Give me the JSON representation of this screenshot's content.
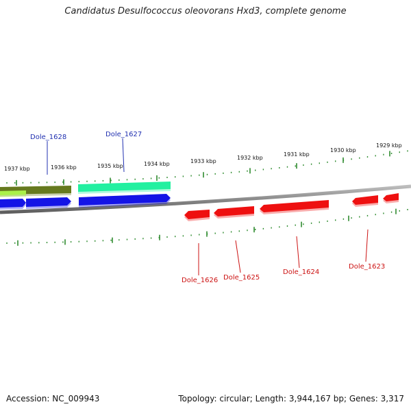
{
  "title": "Candidatus Desulfococcus oleovorans Hxd3, complete genome",
  "footer": {
    "accession": "Accession: NC_009943",
    "summary": "Topology: circular; Length: 3,944,167 bp; Genes: 3,317"
  },
  "colors": {
    "backbone": "#8a8a8a",
    "tick": "#2e8b2e",
    "forward_label": "#1f2fb0",
    "reverse_label": "#cc1111",
    "gene_blue": "#1414e6",
    "gene_red": "#ee1010",
    "gene_olive": "#667a1e",
    "gene_lime": "#aaf04a",
    "gene_teal": "#22f0a0"
  },
  "scale_labels": [
    {
      "kbp": 1937,
      "text": "1937 kbp"
    },
    {
      "kbp": 1936,
      "text": "1936 kbp"
    },
    {
      "kbp": 1935,
      "text": "1935 kbp"
    },
    {
      "kbp": 1934,
      "text": "1934 kbp"
    },
    {
      "kbp": 1933,
      "text": "1933 kbp"
    },
    {
      "kbp": 1932,
      "text": "1932 kbp"
    },
    {
      "kbp": 1931,
      "text": "1931 kbp"
    },
    {
      "kbp": 1930,
      "text": "1930 kbp"
    },
    {
      "kbp": 1929,
      "text": "1929 kbp"
    }
  ],
  "gene_labels": [
    {
      "id": "Dole_1628",
      "strand": "forward"
    },
    {
      "id": "Dole_1627",
      "strand": "forward"
    },
    {
      "id": "Dole_1626",
      "strand": "reverse"
    },
    {
      "id": "Dole_1625",
      "strand": "reverse"
    },
    {
      "id": "Dole_1624",
      "strand": "reverse"
    },
    {
      "id": "Dole_1623",
      "strand": "reverse"
    }
  ]
}
